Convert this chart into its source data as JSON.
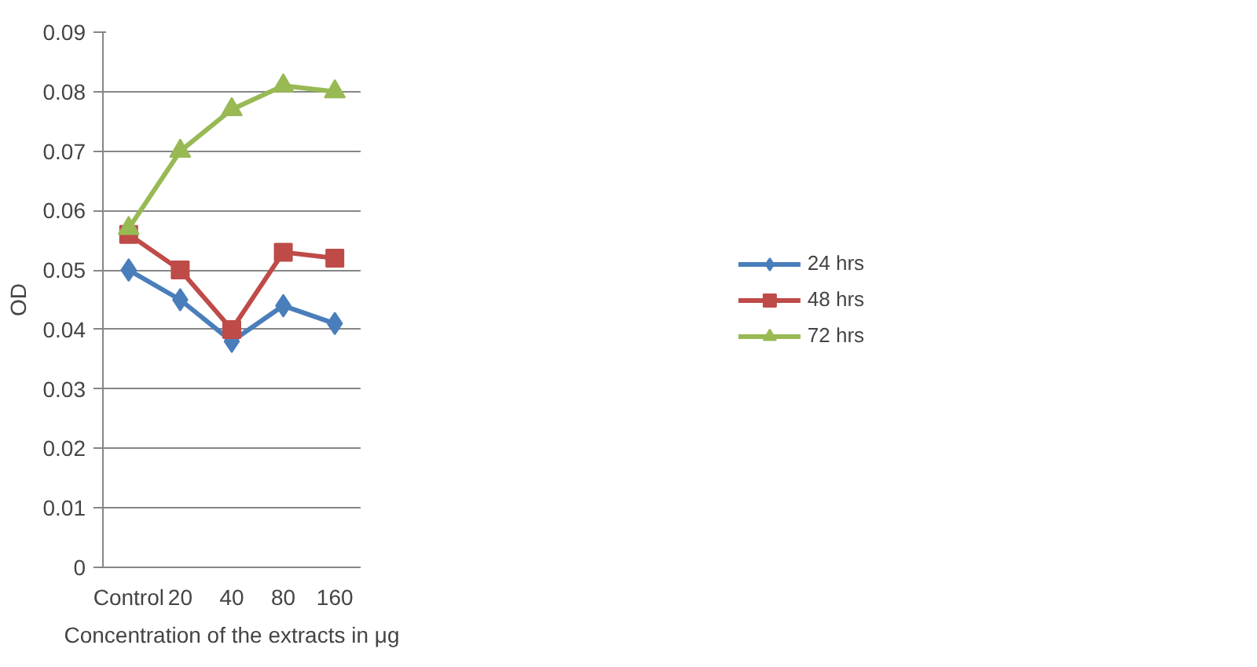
{
  "chart_data": {
    "type": "line",
    "xlabel": "Concentration of the extracts in μg",
    "ylabel": "OD",
    "categories": [
      "Control",
      "20",
      "40",
      "80",
      "160"
    ],
    "series": [
      {
        "name": "24 hrs",
        "color": "#4a7ebb",
        "marker": "diamond",
        "values": [
          0.05,
          0.045,
          0.038,
          0.044,
          0.041
        ]
      },
      {
        "name": "48 hrs",
        "color": "#be4b48",
        "marker": "square",
        "values": [
          0.056,
          0.05,
          0.04,
          0.053,
          0.052
        ]
      },
      {
        "name": "72 hrs",
        "color": "#98b954",
        "marker": "triangle",
        "values": [
          0.057,
          0.07,
          0.077,
          0.081,
          0.08
        ]
      }
    ],
    "ylim": [
      0,
      0.09
    ],
    "yticks": [
      0,
      0.01,
      0.02,
      0.03,
      0.04,
      0.05,
      0.06,
      0.07,
      0.08,
      0.09
    ],
    "grid": "y",
    "legend": "right"
  }
}
